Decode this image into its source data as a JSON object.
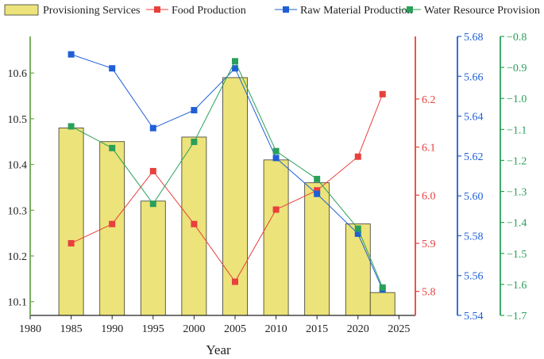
{
  "chart_data": {
    "type": "bar",
    "title": "",
    "xlabel": "Year",
    "x": [
      1985,
      1990,
      1995,
      2000,
      2005,
      2010,
      2015,
      2020,
      2023
    ],
    "xlim": [
      1980,
      2027
    ],
    "xticks": [
      "1980",
      "1985",
      "1990",
      "1995",
      "2000",
      "2005",
      "2010",
      "2015",
      "2020",
      "2025"
    ],
    "legend_position": "top",
    "series": [
      {
        "name": "Provisioning Services",
        "kind": "bar",
        "color": "#ece37a",
        "axis": "y1",
        "values": [
          10.48,
          10.45,
          10.32,
          10.46,
          10.59,
          10.41,
          10.36,
          10.27,
          10.12
        ]
      },
      {
        "name": "Food Production",
        "kind": "line",
        "color": "#e8403c",
        "axis": "y2",
        "values": [
          5.9,
          5.94,
          6.05,
          5.94,
          5.82,
          5.97,
          6.01,
          6.08,
          6.21
        ]
      },
      {
        "name": "Raw Material Production",
        "kind": "line",
        "color": "#1f5fd6",
        "axis": "y3",
        "values": [
          5.671,
          5.664,
          5.634,
          5.643,
          5.664,
          5.619,
          5.601,
          5.581,
          5.553
        ]
      },
      {
        "name": "Water Resource Provision",
        "kind": "line",
        "color": "#2aa05a",
        "axis": "y4",
        "values": [
          -1.09,
          -1.16,
          -1.34,
          -1.14,
          -0.88,
          -1.17,
          -1.26,
          -1.42,
          -1.61
        ]
      }
    ],
    "axes": {
      "y1": {
        "ylim": [
          10.07,
          10.68
        ],
        "ticks": [
          "10.1",
          "10.2",
          "10.3",
          "10.4",
          "10.5",
          "10.6"
        ],
        "color": "#6aa84f"
      },
      "y2": {
        "ylim": [
          5.75,
          6.33
        ],
        "ticks": [
          "5.8",
          "5.9",
          "6.0",
          "6.1",
          "6.2"
        ],
        "color": "#e8403c"
      },
      "y3": {
        "ylim": [
          5.54,
          5.68
        ],
        "ticks": [
          "5.54",
          "5.56",
          "5.58",
          "5.60",
          "5.62",
          "5.64",
          "5.66",
          "5.68"
        ],
        "color": "#1f5fd6"
      },
      "y4": {
        "ylim": [
          -1.7,
          -0.8
        ],
        "ticks": [
          "-1.7",
          "-1.6",
          "-1.5",
          "-1.4",
          "-1.3",
          "-1.2",
          "-1.1",
          "-1.0",
          "-0.9",
          "-0.8"
        ],
        "color": "#2aa05a"
      }
    }
  }
}
